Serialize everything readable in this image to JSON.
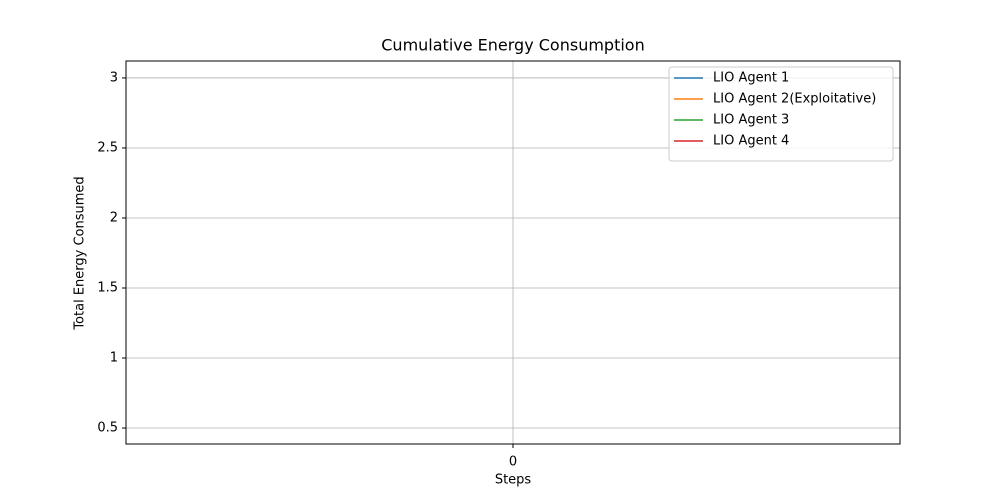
{
  "chart_data": {
    "type": "line",
    "title": "Cumulative Energy Consumption",
    "x_label": "Steps",
    "y_label": "Total Energy Consumed",
    "x": [
      0
    ],
    "series": [
      {
        "name": "LIO Agent 1",
        "color": "#1f77b4",
        "values": [
          null
        ]
      },
      {
        "name": "LIO Agent 2(Exploitative)",
        "color": "#ff7f0e",
        "values": [
          null
        ]
      },
      {
        "name": "LIO Agent 3",
        "color": "#2ca02c",
        "values": [
          null
        ]
      },
      {
        "name": "LIO Agent 4",
        "color": "#d62728",
        "values": [
          null
        ]
      }
    ],
    "xlim": [
      -0.055,
      0.055
    ],
    "xticks": [
      0
    ],
    "ylim": [
      0.386,
      3.121
    ],
    "yticks": [
      0.5,
      1.0,
      1.5,
      2.0,
      2.5,
      3.0
    ],
    "grid": true,
    "legend": "upper right"
  }
}
